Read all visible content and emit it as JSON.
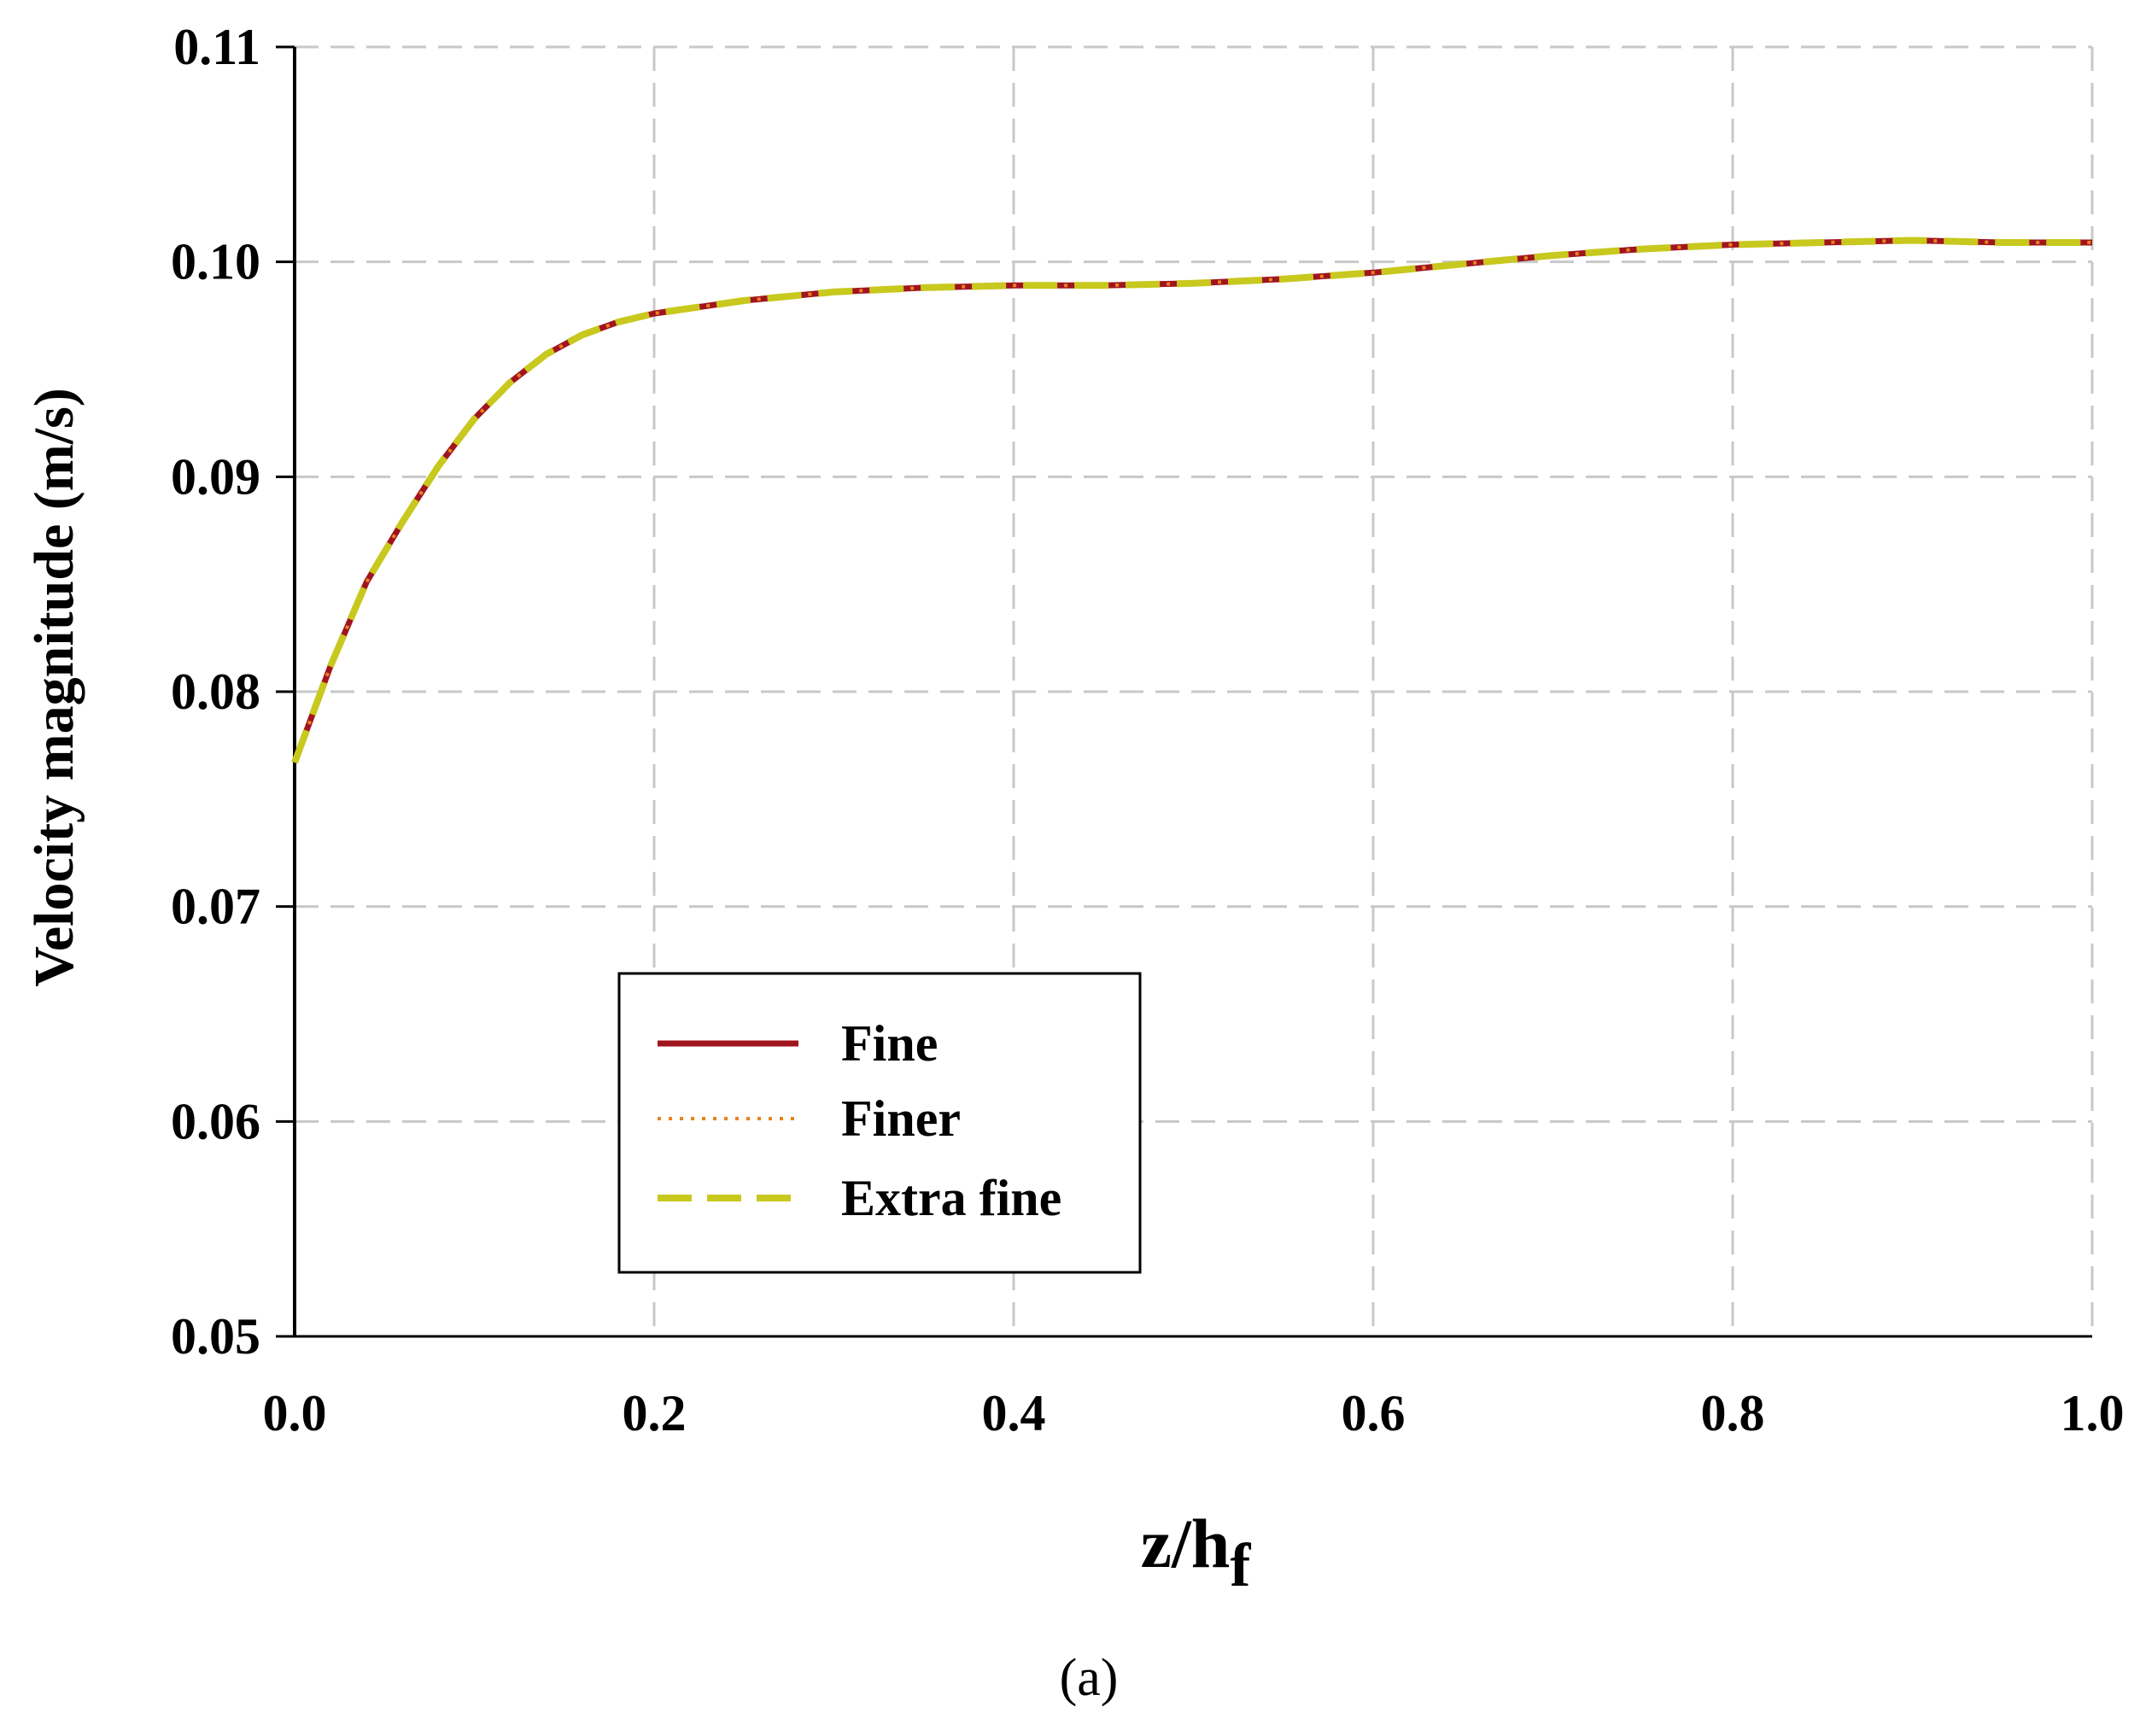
{
  "chart_data": {
    "type": "line",
    "title": "",
    "xlabel": "z/h",
    "xlabel_subscript": "f",
    "ylabel": "Velocity magnitude (m/s)",
    "caption": "(a)",
    "xlim": [
      0.0,
      1.0
    ],
    "ylim": [
      0.05,
      0.11
    ],
    "x_ticks": [
      "0.0",
      "0.2",
      "0.4",
      "0.6",
      "0.8",
      "1.0"
    ],
    "y_ticks": [
      "0.05",
      "0.06",
      "0.07",
      "0.08",
      "0.09",
      "0.10",
      "0.11"
    ],
    "grid": true,
    "legend_position": "lower-left",
    "x": [
      0.0,
      0.02,
      0.04,
      0.06,
      0.08,
      0.1,
      0.12,
      0.14,
      0.16,
      0.18,
      0.2,
      0.25,
      0.3,
      0.35,
      0.4,
      0.45,
      0.5,
      0.55,
      0.6,
      0.65,
      0.7,
      0.75,
      0.8,
      0.85,
      0.9,
      0.95,
      1.0
    ],
    "series": [
      {
        "name": "Fine",
        "color": "#a0141e",
        "style": "solid",
        "values": [
          0.0767,
          0.0812,
          0.0851,
          0.0879,
          0.0905,
          0.0927,
          0.0944,
          0.0957,
          0.0966,
          0.0972,
          0.0976,
          0.0982,
          0.0986,
          0.0988,
          0.0989,
          0.0989,
          0.099,
          0.0992,
          0.0995,
          0.0999,
          0.1003,
          0.1006,
          0.1008,
          0.1009,
          0.101,
          0.1009,
          0.1009
        ]
      },
      {
        "name": "Finer",
        "color": "#e8821e",
        "style": "dotted",
        "values": [
          0.0767,
          0.0812,
          0.0851,
          0.0879,
          0.0905,
          0.0927,
          0.0944,
          0.0957,
          0.0966,
          0.0972,
          0.0976,
          0.0982,
          0.0986,
          0.0988,
          0.0989,
          0.0989,
          0.099,
          0.0992,
          0.0995,
          0.0999,
          0.1003,
          0.1006,
          0.1008,
          0.1009,
          0.101,
          0.1009,
          0.1009
        ]
      },
      {
        "name": "Extra fine",
        "color": "#c8c81e",
        "style": "dashed",
        "values": [
          0.0767,
          0.0812,
          0.0851,
          0.0879,
          0.0905,
          0.0927,
          0.0944,
          0.0957,
          0.0966,
          0.0972,
          0.0976,
          0.0982,
          0.0986,
          0.0988,
          0.0989,
          0.0989,
          0.099,
          0.0992,
          0.0995,
          0.0999,
          0.1003,
          0.1006,
          0.1008,
          0.1009,
          0.101,
          0.1009,
          0.1009
        ]
      }
    ]
  }
}
